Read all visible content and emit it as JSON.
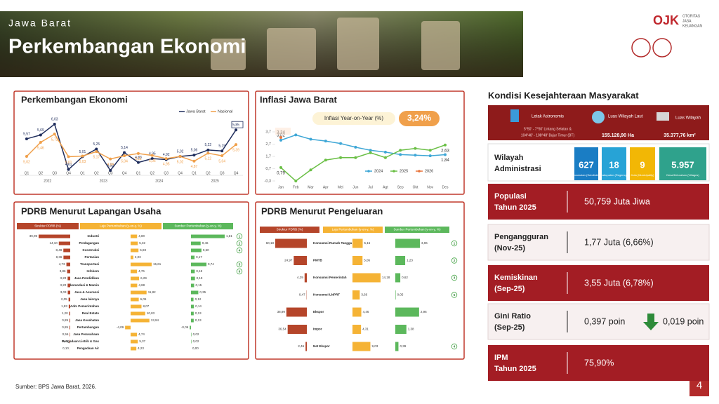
{
  "header": {
    "region": "Jawa Barat",
    "title": "Perkembangan Ekonomi"
  },
  "logo": {
    "mark": "OJK",
    "name": [
      "OTORITAS",
      "JASA",
      "KEUANGAN"
    ]
  },
  "chart_data": [
    {
      "type": "line",
      "title": "Perkembangan Ekonomi",
      "categories": [
        "Q1",
        "Q2",
        "Q3",
        "Q4",
        "Q1",
        "Q2",
        "Q3",
        "Q4",
        "Q1",
        "Q2",
        "Q3",
        "Q4",
        "Q1",
        "Q2",
        "Q3",
        "Q4"
      ],
      "groups": [
        "2022",
        "2023",
        "2024",
        "2025"
      ],
      "series": [
        {
          "name": "Jawa Barat",
          "color": "#1f2d5c",
          "values": [
            5.57,
            5.69,
            6.03,
            4.61,
            5.01,
            5.25,
            4.58,
            5.14,
            4.83,
            4.95,
            4.92,
            5.02,
            5.06,
            5.22,
            5.19,
            5.85
          ],
          "value_labels": [
            "5,57",
            "5,69",
            "6,03",
            "4,61",
            "5,01",
            "5,25",
            "4,58",
            "5,14",
            "4,83",
            "4,95",
            "4,92",
            "5,02",
            "5,06",
            "5,22",
            "5,19",
            "5,85"
          ]
        },
        {
          "name": "Nasional",
          "color": "#f0a04b",
          "values": [
            5.02,
            5.46,
            5.72,
            5.01,
            5.03,
            5.17,
            4.94,
            5.04,
            5.11,
            5.05,
            4.95,
            5.02,
            4.87,
            5.12,
            5.04,
            5.39
          ],
          "value_labels": [
            "5,02",
            "5,46",
            "5,72",
            "5,01",
            "5,03",
            "5,17",
            "4,94",
            "5,04",
            "5,11",
            "5,05",
            "4,95",
            "5,02",
            "4,87",
            "5,12",
            "5,04",
            "5,39"
          ]
        }
      ]
    },
    {
      "type": "line",
      "title": "Inflasi Jawa Barat",
      "badge_label": "Inflasi Year-on-Year (%)",
      "badge_value": "3,24%",
      "categories": [
        "Jan",
        "Feb",
        "Mar",
        "Apr",
        "Mei",
        "Jun",
        "Jul",
        "Agt",
        "Sep",
        "Okt",
        "Nov",
        "Des"
      ],
      "ylim": [
        -0.3,
        3.7
      ],
      "yticks": [
        {
          "value": -0.3,
          "label": "-0,3"
        },
        {
          "value": 0.7,
          "label": "0,7"
        },
        {
          "value": 1.7,
          "label": "1,7"
        },
        {
          "value": 2.7,
          "label": "2,7"
        },
        {
          "value": 3.7,
          "label": "3,7"
        }
      ],
      "series": [
        {
          "name": "2024",
          "color": "#3fa7d6",
          "values": [
            3.02,
            3.45,
            3.1,
            2.95,
            2.75,
            2.45,
            2.2,
            2.05,
            1.85,
            1.8,
            1.75,
            1.84
          ],
          "value_labels": [
            "3,02",
            null,
            null,
            null,
            null,
            null,
            null,
            null,
            null,
            null,
            null,
            "1,84"
          ]
        },
        {
          "name": "2025",
          "color": "#6abf45",
          "values": [
            0.79,
            -0.3,
            0.6,
            1.4,
            1.6,
            1.6,
            2.0,
            1.6,
            2.2,
            2.35,
            2.2,
            2.63
          ],
          "value_labels": [
            "0,79",
            null,
            null,
            null,
            null,
            null,
            null,
            null,
            null,
            null,
            null,
            "2,63"
          ]
        },
        {
          "name": "2026",
          "color": "#e8743b",
          "values": [
            3.24,
            null,
            null,
            null,
            null,
            null,
            null,
            null,
            null,
            null,
            null,
            null
          ],
          "value_labels": [
            "3,24",
            null,
            null,
            null,
            null,
            null,
            null,
            null,
            null,
            null,
            null,
            null
          ]
        }
      ]
    }
  ],
  "tables": [
    {
      "title": "PDRB Menurut Lapangan Usaha",
      "headers": [
        "Struktur PDRB (%)",
        "Laju Pertumbuhan (y-on-y, %)",
        "Sumber Pertumbuhan (y-on-y, %)"
      ],
      "rows": [
        [
          "Industri",
          "39,09",
          "4,80",
          "1,61"
        ],
        [
          "Perdagangan",
          "14,10",
          "5,32",
          "0,46"
        ],
        [
          "Konstruksi",
          "8,49",
          "5,83",
          "0,50"
        ],
        [
          "Pertanian",
          "8,36",
          "2,03",
          "0,17"
        ],
        [
          "Transportasi",
          "4,73",
          "15,61",
          "0,74"
        ],
        [
          "Infokom",
          "3,86",
          "4,76",
          "0,18"
        ],
        [
          "Jasa Pendidikan",
          "3,20",
          "6,29",
          "0,19"
        ],
        [
          "Akomodasi & Mamin",
          "3,20",
          "4,88",
          "0,15"
        ],
        [
          "Jasa & Asuransi",
          "3,03",
          "11,82",
          "0,35"
        ],
        [
          "Jasa lainnya",
          "2,05",
          "6,05",
          "0,12"
        ],
        [
          "Adm Pemerintahan",
          "1,83",
          "8,07",
          "0,14"
        ],
        [
          "Real Estate",
          "1,20",
          "10,83",
          "0,13"
        ],
        [
          "Jasa Kesehatan",
          "0,89",
          "13,94",
          "0,13"
        ],
        [
          "Pertambangan",
          "0,85",
          "-4,09",
          "-0,06"
        ],
        [
          "Jasa Perusahaan",
          "0,56",
          "4,74",
          "0,02"
        ],
        [
          "Pengadaan Listrik & Gas",
          "0,42",
          "5,37",
          "0,02"
        ],
        [
          "Pengadaan Air",
          "0,10",
          "4,23",
          "0,00"
        ]
      ],
      "ranks": [
        "1",
        "2",
        "4",
        null,
        "5",
        "6",
        null,
        null,
        null,
        null,
        null,
        null,
        null,
        null,
        null,
        null,
        null
      ]
    },
    {
      "title": "PDRB Menurut Pengeluaran",
      "headers": [
        "Struktur PDRB (%)",
        "Laju Pertumbuhan (y-on-y, %)",
        "Sumber Pertumbuhan (y-on-y, %)"
      ],
      "rows": [
        [
          "Konsumsi Rumah Tangga",
          "60,18",
          "5,16",
          "3,06"
        ],
        [
          "PMTB",
          "24,97",
          "5,06",
          "1,23"
        ],
        [
          "Konsumsi Pemerintah",
          "4,29",
          "14,18",
          "0,62"
        ],
        [
          "Konsumsi LNPRT",
          "0,47",
          "3,66",
          "0,05"
        ],
        [
          "Ekspor",
          "38,99",
          "4,46",
          "2,96"
        ],
        [
          "Impor",
          "36,54",
          "4,31",
          "1,38"
        ],
        [
          "Net Ekspor",
          "2,46",
          "9,03",
          "0,39"
        ]
      ],
      "ranks": [
        "1",
        "2",
        "3",
        "5",
        null,
        null,
        "4"
      ]
    }
  ],
  "welfare": {
    "title": "Kondisi Kesejahteraan Masyarakat",
    "location": {
      "label": "Letak Astronomis",
      "lines": [
        "5°50' - 7°50' Lintang Selatan &",
        "104°48' - 108°48' Bujur Timur (BT)"
      ]
    },
    "sea": {
      "label": "Luas Wilayah Laut",
      "value": "155.128,90 Ha"
    },
    "area": {
      "label": "Luas Wilayah",
      "value": "35.377,76 km²"
    },
    "admin": {
      "label": [
        "Wilayah",
        "Administrasi"
      ],
      "units": [
        {
          "value": "627",
          "label": "Kecamatan (Subdistrict)"
        },
        {
          "value": "18",
          "label": "Kabupaten (Regency)"
        },
        {
          "value": "9",
          "label": "Kota (Municipality)"
        },
        {
          "value": "5.957",
          "label": "Desa/Kelurahan (Villages)"
        }
      ]
    },
    "indicators": [
      {
        "label": [
          "Populasi",
          "Tahun 2025"
        ],
        "value": "50,759 Juta Jiwa"
      },
      {
        "label": [
          "Pengangguran",
          "(Nov-25)"
        ],
        "value": "1,77 Juta (6,66%)"
      },
      {
        "label": [
          "Kemiskinan",
          "(Sep-25)"
        ],
        "value": "3,55 Juta (6,78%)"
      },
      {
        "label": [
          "Gini Ratio",
          "(Sep-25)"
        ],
        "value": "0,397 poin",
        "change": "0,019 poin"
      },
      {
        "label": [
          "IPM",
          "Tahun 2025"
        ],
        "value": "75,90%"
      }
    ]
  },
  "footer": {
    "source": "Sumber: BPS Jawa Barat, 2026.",
    "page": "4"
  }
}
